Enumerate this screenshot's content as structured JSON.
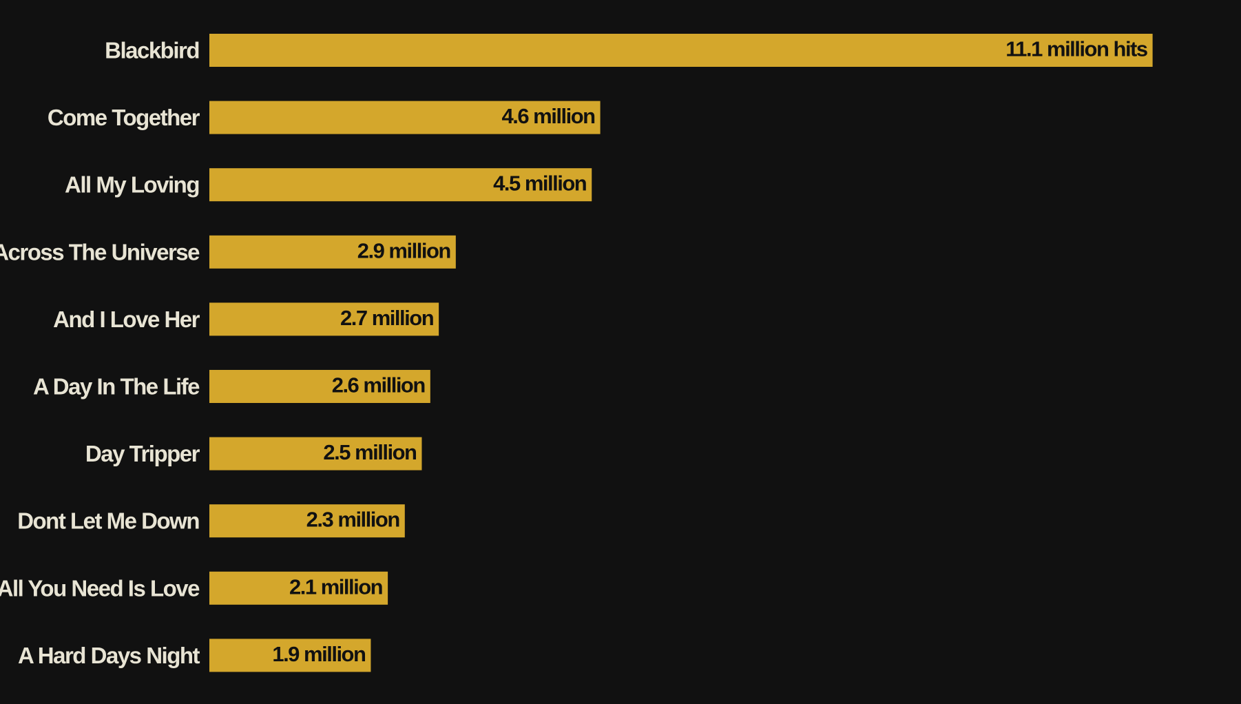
{
  "chart_data": {
    "type": "bar",
    "orientation": "horizontal",
    "title": "",
    "xlabel": "",
    "ylabel": "",
    "grid": false,
    "legend": "none",
    "xlim": [
      0,
      11.8
    ],
    "bar_color": "#d4a72c",
    "background_color": "#111111",
    "label_color": "#e8e4d4",
    "value_label_color": "#111111",
    "categories": [
      "Blackbird",
      "Come Together",
      "All My Loving",
      "Across The Universe",
      "And I Love Her",
      "A Day In The Life",
      "Day Tripper",
      "Dont Let Me Down",
      "All You Need Is Love",
      "A Hard Days Night"
    ],
    "values": [
      11.1,
      4.6,
      4.5,
      2.9,
      2.7,
      2.6,
      2.5,
      2.3,
      2.1,
      1.9
    ],
    "value_labels": [
      "11.1 million hits",
      "4.6 million",
      "4.5 million",
      "2.9 million",
      "2.7 million",
      "2.6 million",
      "2.5 million",
      "2.3 million",
      "2.1 million",
      "1.9 million"
    ]
  }
}
